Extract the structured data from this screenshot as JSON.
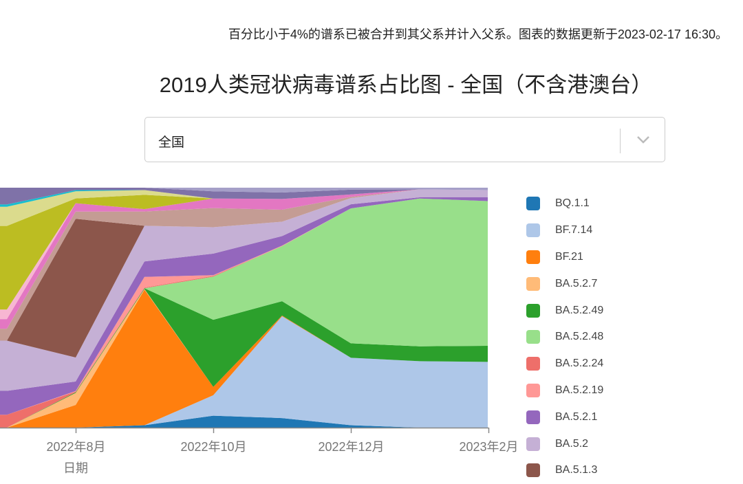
{
  "note": "百分比小于4%的谱系已被合并到其父系并计入父系。图表的数据更新于2023-02-17 16:30。",
  "select": {
    "value": "全国",
    "icon": "chevron-down-icon"
  },
  "chart_data": {
    "type": "area",
    "stacked": true,
    "title": "2019人类冠状病毒谱系占比图 - 全国（不含港澳台）",
    "xlabel": "日期",
    "ylabel": "",
    "x": [
      "2022-07",
      "2022-08",
      "2022-09",
      "2022-10",
      "2022-11",
      "2022-12",
      "2023-01",
      "2023-02"
    ],
    "xticks": [
      "2022年8月",
      "2022年10月",
      "2022年12月",
      "2023年2月"
    ],
    "ylim": [
      0,
      100
    ],
    "grid": false,
    "legend_position": "right",
    "series": [
      {
        "name": "BQ.1.1",
        "color": "#1f77b4",
        "values": [
          0,
          0,
          1,
          5,
          4,
          1,
          0,
          0
        ]
      },
      {
        "name": "BF.7.14",
        "color": "#aec7e8",
        "values": [
          0,
          0,
          0,
          8.5,
          42.5,
          28,
          27.7,
          27.4
        ]
      },
      {
        "name": "BF.21",
        "color": "#ff7f0e",
        "values": [
          0,
          9.5,
          57,
          3.5,
          0.3,
          0,
          0,
          0
        ]
      },
      {
        "name": "BA.5.2.7",
        "color": "#ffbb78",
        "values": [
          0,
          5,
          0.3,
          0,
          0,
          0,
          0,
          0
        ]
      },
      {
        "name": "BA.5.2.49",
        "color": "#2ca02c",
        "values": [
          0,
          0.3,
          0.3,
          28,
          6,
          6,
          6.2,
          6.7
        ]
      },
      {
        "name": "BA.5.2.48",
        "color": "#98df8a",
        "values": [
          0,
          0,
          0,
          18,
          23,
          56,
          61.6,
          60.3
        ]
      },
      {
        "name": "BA.5.2.24",
        "color": "#ee6f6a",
        "values": [
          5.4,
          0.3,
          0.3,
          0.3,
          0,
          0,
          0,
          0
        ]
      },
      {
        "name": "BA.5.2.19",
        "color": "#ff9896",
        "values": [
          0,
          0.2,
          4.5,
          0.3,
          0.2,
          0,
          0,
          0
        ]
      },
      {
        "name": "BA.5.2.1",
        "color": "#9467bd",
        "values": [
          10,
          4,
          6.5,
          9,
          4,
          1.7,
          0.5,
          1.6
        ]
      },
      {
        "name": "BA.5.2",
        "color": "#c5b0d5",
        "values": [
          21,
          10,
          15,
          11,
          6,
          2.6,
          3.3,
          3
        ]
      },
      {
        "name": "BA.5.1.3",
        "color": "#8c564b",
        "values": [
          0,
          58,
          0,
          0,
          0,
          0,
          0,
          0
        ]
      },
      {
        "name": "",
        "color": "#c49c94",
        "values": [
          5,
          3,
          6,
          8,
          5,
          0.5,
          0,
          0
        ]
      },
      {
        "name": "",
        "color": "#e377c2",
        "values": [
          4,
          3.5,
          1,
          4,
          4.5,
          1,
          0,
          0
        ]
      },
      {
        "name": "",
        "color": "#f7b6d2",
        "values": [
          4,
          0,
          0,
          0,
          0,
          0,
          0,
          0
        ]
      },
      {
        "name": "",
        "color": "#bcbd22",
        "values": [
          35,
          2,
          6,
          0,
          0,
          0,
          0,
          0
        ]
      },
      {
        "name": "",
        "color": "#dbdb8d",
        "values": [
          8,
          3,
          2,
          0,
          0,
          0,
          0,
          0
        ]
      },
      {
        "name": "",
        "color": "#17becf",
        "values": [
          1,
          0.5,
          0,
          0,
          0,
          0,
          0,
          0
        ]
      },
      {
        "name": "",
        "color": "#7f72a8",
        "values": [
          7,
          1,
          1,
          3,
          2.7,
          2,
          0,
          0
        ]
      },
      {
        "name": "",
        "color": "#a59fc8",
        "values": [
          0,
          0,
          0,
          1.5,
          2,
          0.8,
          0.7,
          1
        ]
      }
    ]
  }
}
